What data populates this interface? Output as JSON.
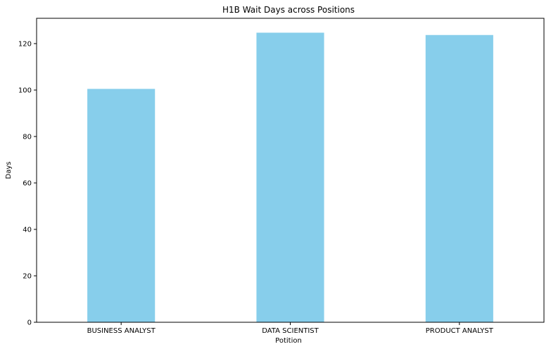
{
  "chart_data": {
    "type": "bar",
    "title": "H1B Wait Days across Positions",
    "xlabel": "Potition",
    "ylabel": "Days",
    "categories": [
      "BUSINESS ANALYST",
      "DATA SCIENTIST",
      "PRODUCT ANALYST"
    ],
    "values": [
      100.5,
      124.7,
      123.7
    ],
    "ylim": [
      0,
      130.9
    ],
    "yticks": [
      "0",
      "20",
      "40",
      "60",
      "80",
      "100",
      "120"
    ],
    "grid": false,
    "bar_color": "#87ceeb"
  }
}
